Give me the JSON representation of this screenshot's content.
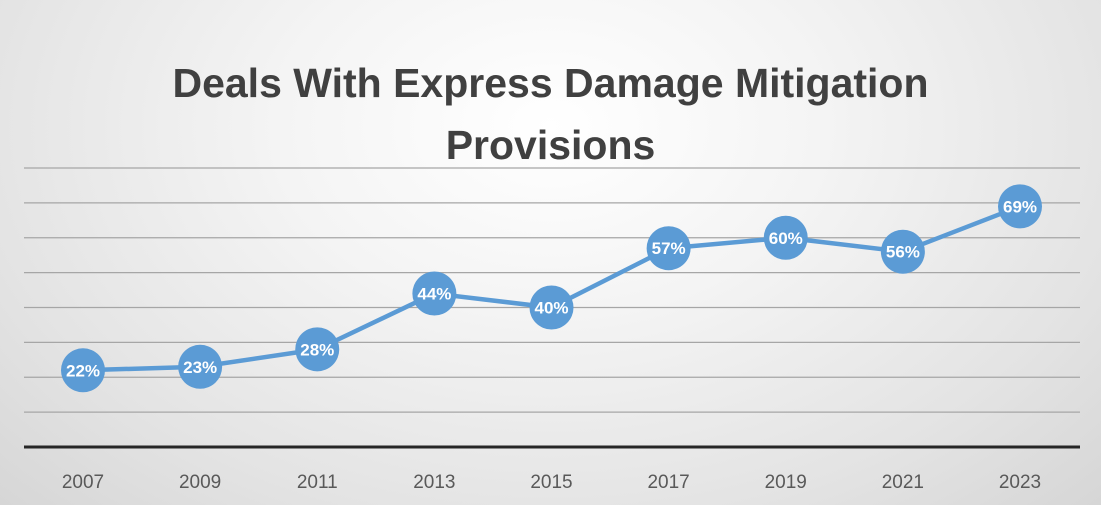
{
  "chart_data": {
    "type": "line",
    "title_lines": [
      "Deals With Express Damage Mitigation",
      "Provisions"
    ],
    "x": [
      "2007",
      "2009",
      "2011",
      "2013",
      "2015",
      "2017",
      "2019",
      "2021",
      "2023"
    ],
    "series": [
      {
        "values": [
          22,
          23,
          28,
          44,
          40,
          57,
          60,
          56,
          69
        ],
        "data_labels": [
          "22%",
          "23%",
          "28%",
          "44%",
          "40%",
          "57%",
          "60%",
          "56%",
          "69%"
        ],
        "color": "#5b9bd5"
      }
    ],
    "ylim": [
      0,
      80
    ],
    "grid": true,
    "legend": "none",
    "colors": {
      "title": "#404040",
      "gridline": "#a6a6a6",
      "axis": "#262626",
      "tick_label": "#595959"
    }
  }
}
